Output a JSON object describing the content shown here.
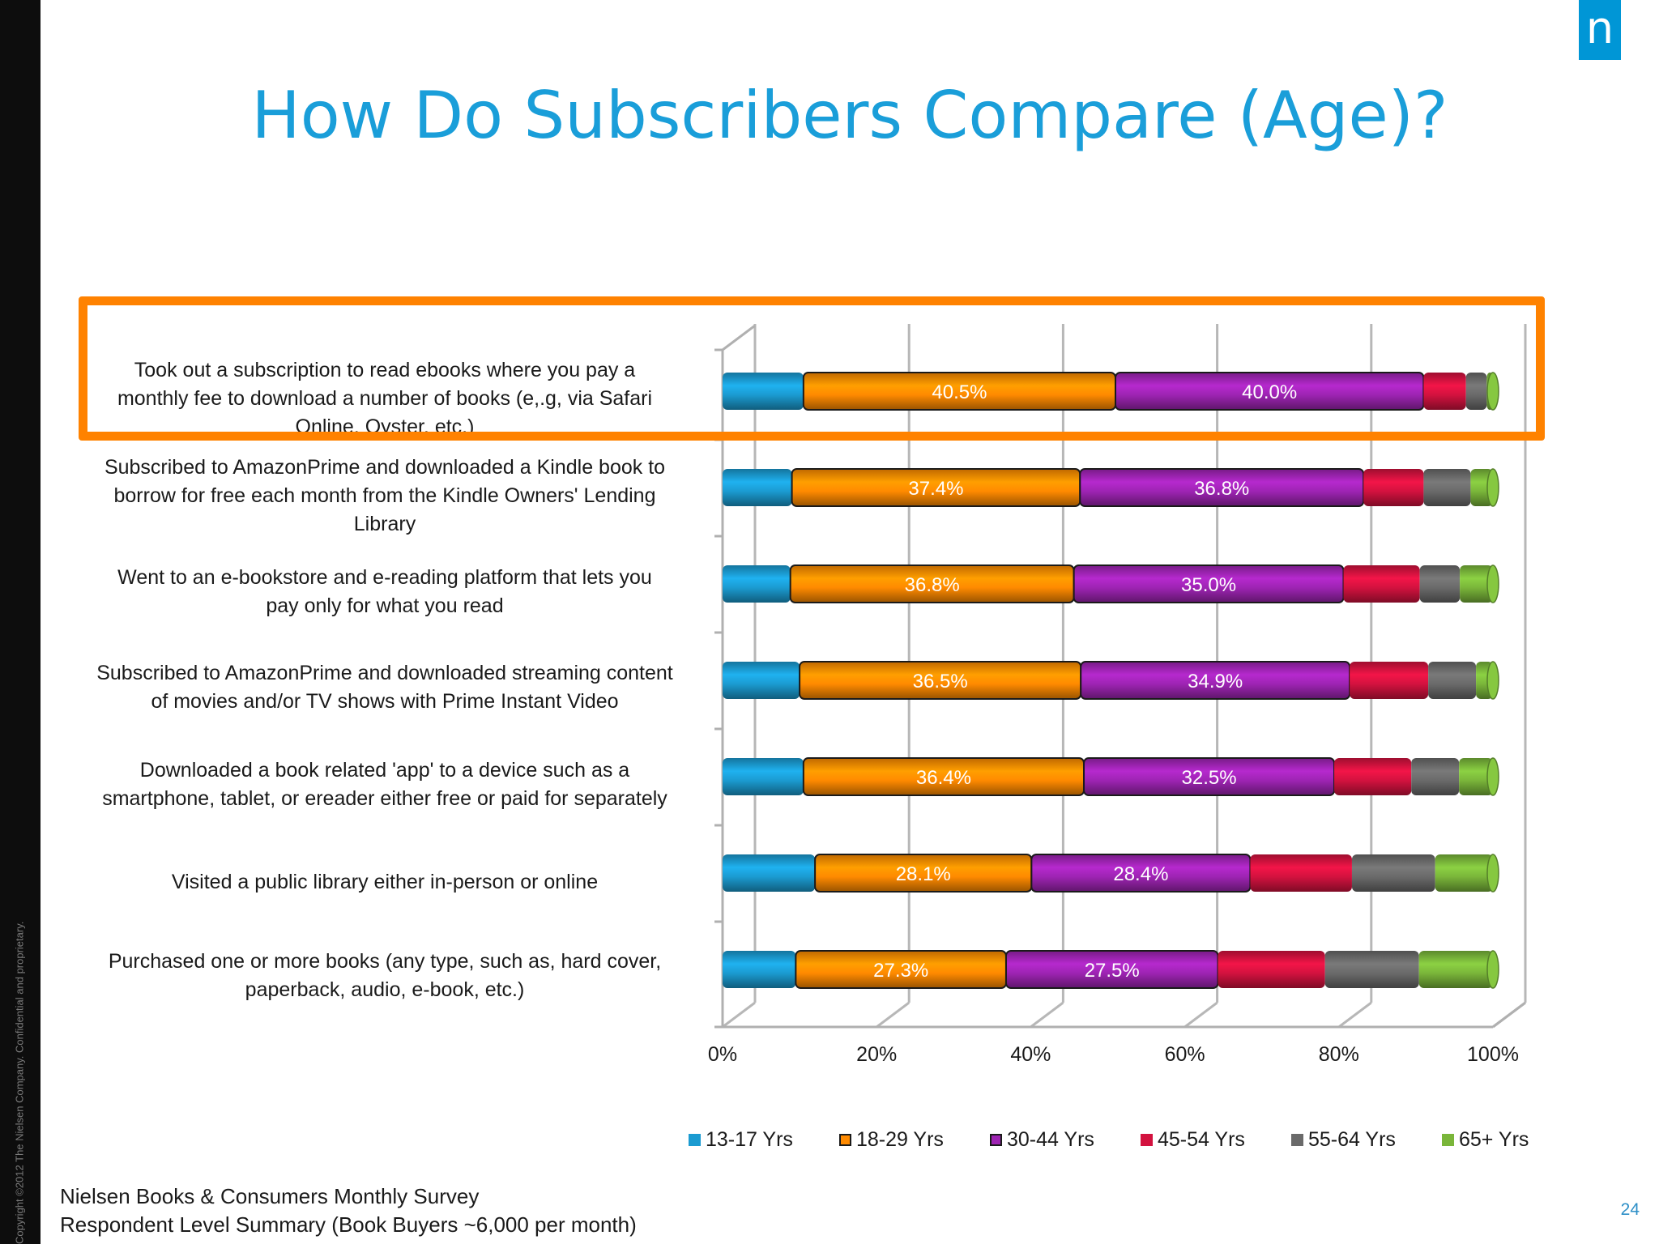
{
  "page": {
    "title": "How Do Subscribers Compare (Age)?",
    "copyright": "Copyright ©2012 The Nielsen Company. Confidential and proprietary.",
    "logo_letter": "n",
    "footer_line1": "Nielsen Books & Consumers Monthly Survey",
    "footer_line2": "Respondent Level Summary (Book Buyers ~6,000 per month)",
    "page_number": "24",
    "highlight_color": "#ff8200",
    "title_color": "#1a9ed9",
    "brand_color": "#0096d6"
  },
  "chart_data": {
    "type": "bar",
    "orientation": "horizontal",
    "stacked": true,
    "percent_stacked": true,
    "categories": [
      "Took out a subscription to read ebooks where you pay a monthly fee to download a number of books (e,.g, via Safari Online, Oyster, etc.)",
      "Subscribed to AmazonPrime and downloaded a Kindle book to borrow for free each month from the Kindle Owners' Lending Library",
      "Went to an e-bookstore and e-reading platform that lets you pay only for what you read",
      "Subscribed to AmazonPrime and downloaded streaming content of movies and/or TV shows with Prime Instant Video",
      "Downloaded a book related 'app' to a device such as a smartphone, tablet, or ereader either free or paid for separately",
      "Visited a public library either in-person or online",
      "Purchased one or more books (any type, such as, hard cover, paperback, audio, e-book, etc.)"
    ],
    "series": [
      {
        "name": "13-17 Yrs",
        "color": "#1b9bd1",
        "values": [
          10.5,
          9.0,
          8.8,
          10.0,
          10.5,
          12.0,
          9.5
        ],
        "labels": [
          "",
          "",
          "",
          "",
          "",
          "",
          ""
        ]
      },
      {
        "name": "18-29 Yrs",
        "color": "#ff8a00",
        "values": [
          40.5,
          37.4,
          36.8,
          36.5,
          36.4,
          28.1,
          27.3
        ],
        "labels": [
          "40.5%",
          "37.4%",
          "36.8%",
          "36.5%",
          "36.4%",
          "28.1%",
          "27.3%"
        ]
      },
      {
        "name": "30-44 Yrs",
        "color": "#9e24b3",
        "values": [
          40.0,
          36.8,
          35.0,
          34.9,
          32.5,
          28.4,
          27.5
        ],
        "labels": [
          "40.0%",
          "36.8%",
          "35.0%",
          "34.9%",
          "32.5%",
          "28.4%",
          "27.5%"
        ]
      },
      {
        "name": "45-54 Yrs",
        "color": "#d3123f",
        "values": [
          5.5,
          7.8,
          9.9,
          10.2,
          10.0,
          13.2,
          13.9
        ],
        "labels": [
          "",
          "",
          "",
          "",
          "",
          "",
          ""
        ]
      },
      {
        "name": "55-64 Yrs",
        "color": "#6a6a6a",
        "values": [
          2.7,
          6.1,
          5.2,
          6.2,
          6.2,
          10.8,
          12.2
        ],
        "labels": [
          "",
          "",
          "",
          "",
          "",
          "",
          ""
        ]
      },
      {
        "name": "65+ Yrs",
        "color": "#7ab63a",
        "values": [
          0.8,
          2.9,
          4.3,
          2.2,
          4.4,
          7.5,
          9.6
        ],
        "labels": [
          "",
          "",
          "",
          "",
          "",
          "",
          ""
        ]
      }
    ],
    "xlim": [
      0,
      100
    ],
    "xticks": [
      "0%",
      "20%",
      "40%",
      "60%",
      "80%",
      "100%"
    ],
    "xlabel": "",
    "ylabel": "",
    "grid": true,
    "legend_position": "bottom",
    "highlighted_category": 0
  }
}
